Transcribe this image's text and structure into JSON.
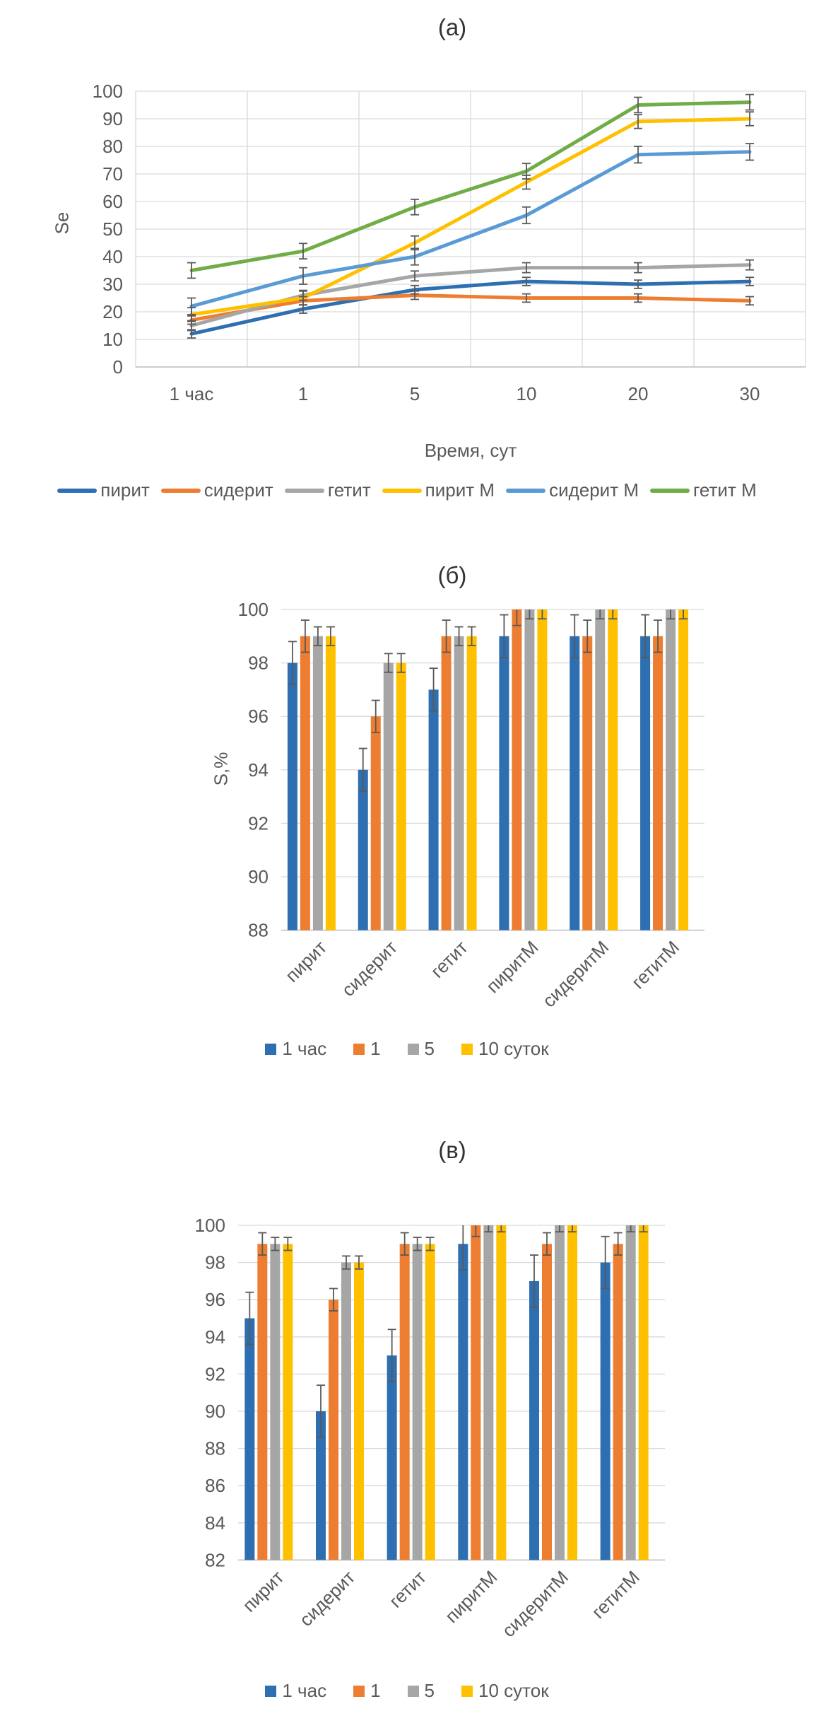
{
  "page": {
    "background": "#ffffff"
  },
  "status_colors": {
    "grid": "#D9D9D9",
    "axis": "#BFBFBF",
    "error_bar": "#595959",
    "tick_text": "#595959",
    "title_text": "#333333"
  },
  "chart_data": [
    {
      "type": "line",
      "title": "(а)",
      "xlabel": "Время, сут",
      "ylabel": "Se",
      "ylim": [
        0,
        100
      ],
      "ytick_step": 10,
      "grid": true,
      "legend_position": "bottom",
      "x_categories": [
        "1 час",
        "1",
        "5",
        "10",
        "20",
        "30"
      ],
      "series": [
        {
          "name": "пирит",
          "color": "#2E6FB2",
          "values": [
            12,
            21,
            28,
            31,
            30,
            31
          ],
          "error": 1.5
        },
        {
          "name": "сидерит",
          "color": "#ED7D31",
          "values": [
            17,
            24,
            26,
            25,
            25,
            24
          ],
          "error": 1.5
        },
        {
          "name": "гетит",
          "color": "#A6A6A6",
          "values": [
            15,
            26,
            33,
            36,
            36,
            37
          ],
          "error": 1.8
        },
        {
          "name": "пирит М",
          "color": "#FFC000",
          "values": [
            19,
            25,
            45,
            67,
            89,
            90
          ],
          "error": 2.5
        },
        {
          "name": "сидерит М",
          "color": "#5B9BD5",
          "values": [
            22,
            33,
            40,
            55,
            77,
            78
          ],
          "error": 3
        },
        {
          "name": "гетит М",
          "color": "#70AD47",
          "values": [
            35,
            42,
            58,
            71,
            95,
            96
          ],
          "error": 2.8
        }
      ]
    },
    {
      "type": "bar",
      "title": "(б)",
      "xlabel": "",
      "ylabel": "S,%",
      "ylim": [
        88,
        100
      ],
      "ytick_step": 2,
      "grid": true,
      "legend_position": "bottom",
      "categories": [
        "пирит",
        "сидерит",
        "гетит",
        "пиритМ",
        "сидеритМ",
        "гетитМ"
      ],
      "series": [
        {
          "name": "1 час",
          "color": "#2E6FB2",
          "values": [
            98,
            94,
            97,
            99,
            99,
            99
          ],
          "error": 0.8
        },
        {
          "name": "1",
          "color": "#ED7D31",
          "values": [
            99,
            96,
            99,
            100,
            99,
            99
          ],
          "error": 0.6
        },
        {
          "name": "5",
          "color": "#A6A6A6",
          "values": [
            99,
            98,
            99,
            100,
            100,
            100
          ],
          "error": 0.35
        },
        {
          "name": "10 суток",
          "color": "#FFC000",
          "values": [
            99,
            98,
            99,
            100,
            100,
            100
          ],
          "error": 0.35
        }
      ]
    },
    {
      "type": "bar",
      "title": "(в)",
      "xlabel": "",
      "ylabel": "",
      "ylim": [
        82,
        100
      ],
      "ytick_step": 2,
      "grid": true,
      "legend_position": "bottom",
      "categories": [
        "пирит",
        "сидерит",
        "гетит",
        "пиритМ",
        "сидеритМ",
        "гетитМ"
      ],
      "series": [
        {
          "name": "1 час",
          "color": "#2E6FB2",
          "values": [
            95,
            90,
            93,
            99,
            97,
            98
          ],
          "error": 1.4
        },
        {
          "name": "1",
          "color": "#ED7D31",
          "values": [
            99,
            96,
            99,
            100,
            99,
            99
          ],
          "error": 0.6
        },
        {
          "name": "5",
          "color": "#A6A6A6",
          "values": [
            99,
            98,
            99,
            100,
            100,
            100
          ],
          "error": 0.35
        },
        {
          "name": "10 суток",
          "color": "#FFC000",
          "values": [
            99,
            98,
            99,
            100,
            100,
            100
          ],
          "error": 0.35
        }
      ]
    }
  ]
}
